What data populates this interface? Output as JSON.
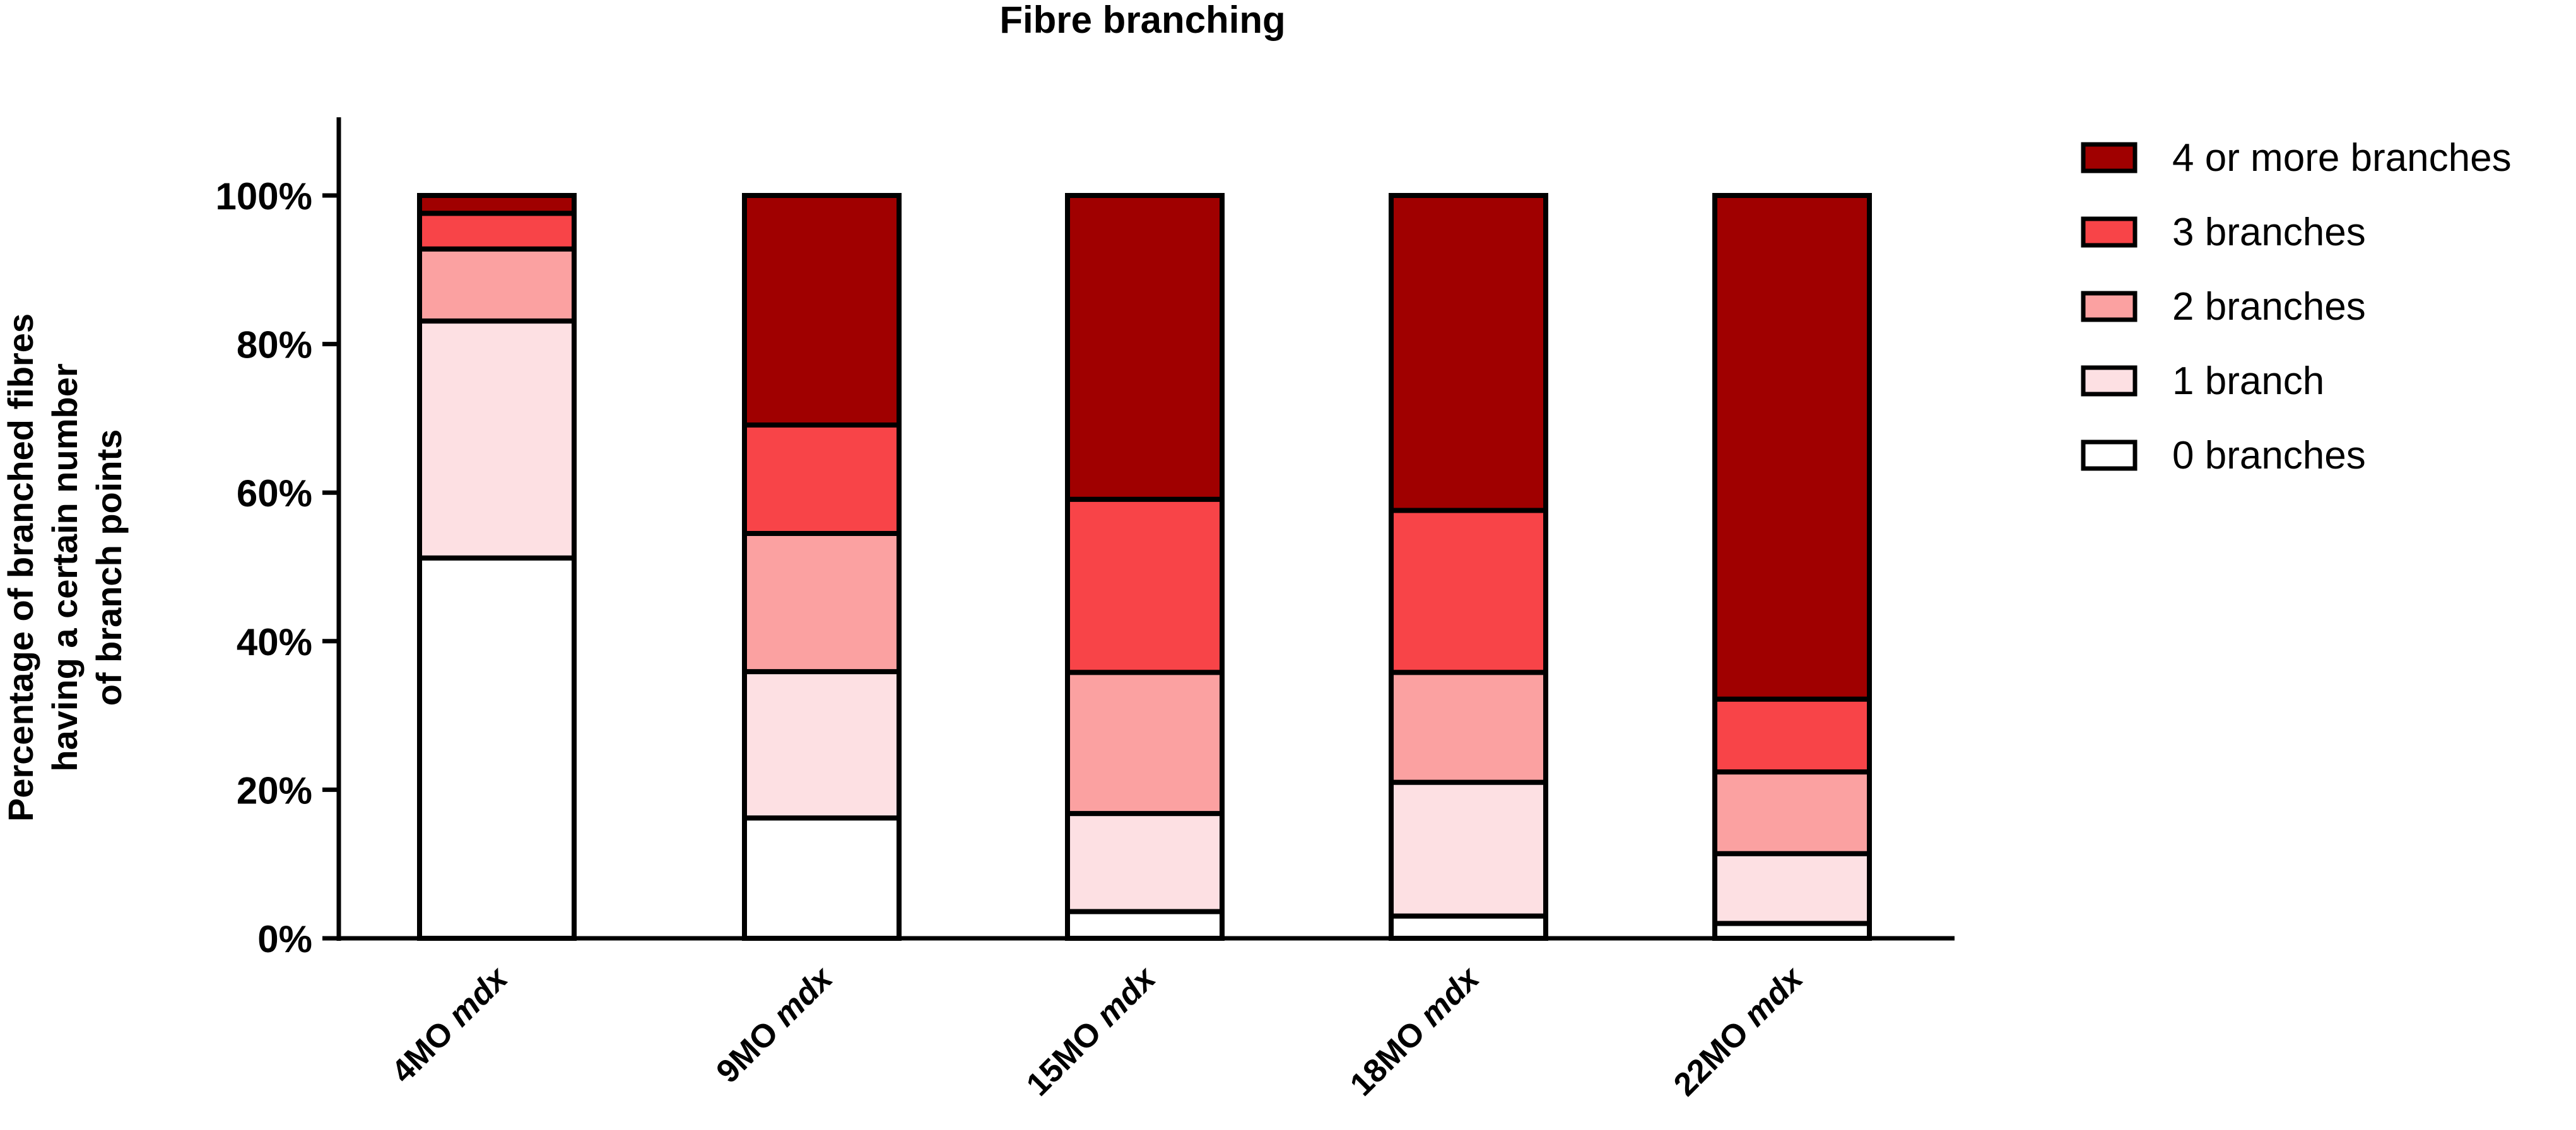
{
  "chart_data": {
    "type": "bar",
    "stacked": true,
    "title": "Fibre branching",
    "ylabel": "Percentage of branched fibres having a certain number of branch points",
    "ylabel_lines": [
      "Percentage of branched fibres",
      "having a certain number",
      "of branch points"
    ],
    "xlabel": "",
    "ylim": [
      0,
      100
    ],
    "yticks": [
      "0%",
      "20%",
      "40%",
      "60%",
      "80%",
      "100%"
    ],
    "ytick_values": [
      0,
      20,
      40,
      60,
      80,
      100
    ],
    "grid": false,
    "legend_position": "top-right",
    "categories": [
      {
        "prefix": "4MO",
        "suffix": "mdx"
      },
      {
        "prefix": "9MO",
        "suffix": "mdx"
      },
      {
        "prefix": "15MO",
        "suffix": "mdx"
      },
      {
        "prefix": "18MO",
        "suffix": "mdx"
      },
      {
        "prefix": "22MO",
        "suffix": "mdx"
      }
    ],
    "series": [
      {
        "name": "0 branches",
        "color": "#ffffff",
        "values": [
          51.2,
          16.2,
          3.6,
          3.0,
          2.0
        ]
      },
      {
        "name": "1 branch",
        "color": "#fde0e3",
        "values": [
          31.9,
          19.7,
          13.2,
          18.0,
          9.4
        ]
      },
      {
        "name": "2 branches",
        "color": "#fba1a1",
        "values": [
          9.7,
          18.6,
          19.0,
          14.8,
          11.0
        ]
      },
      {
        "name": "3 branches",
        "color": "#f84448",
        "values": [
          4.8,
          14.6,
          23.3,
          21.8,
          9.8
        ]
      },
      {
        "name": "4 or more branches",
        "color": "#a00000",
        "values": [
          2.4,
          30.9,
          40.9,
          42.4,
          67.8
        ]
      }
    ]
  }
}
